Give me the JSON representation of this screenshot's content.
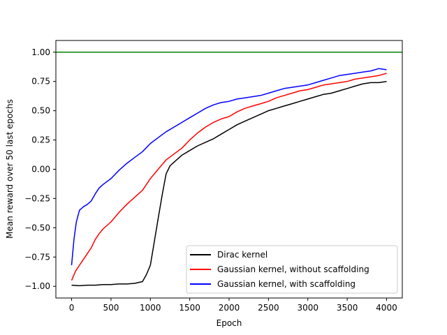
{
  "chart_data": {
    "type": "line",
    "title": "",
    "xlabel": "Epoch",
    "ylabel": "Mean reward over 50 last epochs",
    "xlim": [
      -200,
      4200
    ],
    "ylim": [
      -1.1,
      1.1
    ],
    "xticks": [
      0,
      500,
      1000,
      1500,
      2000,
      2500,
      3000,
      3500,
      4000
    ],
    "xtick_labels": [
      "0",
      "500",
      "1000",
      "1500",
      "2000",
      "2500",
      "3000",
      "3500",
      "4000"
    ],
    "yticks": [
      -1.0,
      -0.75,
      -0.5,
      -0.25,
      0.0,
      0.25,
      0.5,
      0.75,
      1.0
    ],
    "ytick_labels": [
      "−1.00",
      "−0.75",
      "−0.50",
      "−0.25",
      "0.00",
      "0.25",
      "0.50",
      "0.75",
      "1.00"
    ],
    "grid": false,
    "legend_position": "lower-right",
    "reference_line": {
      "y": 1.0,
      "color": "#008000"
    },
    "series": [
      {
        "name": "Dirac kernel",
        "color": "#000000",
        "x": [
          0,
          100,
          200,
          300,
          400,
          500,
          600,
          700,
          800,
          900,
          950,
          1000,
          1050,
          1100,
          1150,
          1200,
          1250,
          1300,
          1350,
          1400,
          1500,
          1600,
          1700,
          1800,
          1900,
          2000,
          2100,
          2200,
          2300,
          2400,
          2500,
          2600,
          2700,
          2800,
          2900,
          3000,
          3100,
          3200,
          3300,
          3400,
          3500,
          3600,
          3700,
          3800,
          3900,
          4000
        ],
        "y": [
          -0.99,
          -0.995,
          -0.99,
          -0.99,
          -0.985,
          -0.985,
          -0.98,
          -0.98,
          -0.975,
          -0.96,
          -0.9,
          -0.82,
          -0.62,
          -0.42,
          -0.22,
          -0.04,
          0.03,
          0.06,
          0.09,
          0.12,
          0.16,
          0.2,
          0.23,
          0.26,
          0.3,
          0.34,
          0.38,
          0.41,
          0.44,
          0.47,
          0.5,
          0.52,
          0.54,
          0.56,
          0.58,
          0.6,
          0.62,
          0.64,
          0.65,
          0.67,
          0.69,
          0.71,
          0.73,
          0.74,
          0.74,
          0.75
        ]
      },
      {
        "name": "Gaussian kernel, without scaffolding",
        "color": "#ff0000",
        "x": [
          0,
          50,
          100,
          150,
          200,
          250,
          300,
          350,
          400,
          500,
          600,
          700,
          800,
          900,
          1000,
          1100,
          1200,
          1300,
          1400,
          1500,
          1600,
          1700,
          1800,
          1900,
          2000,
          2100,
          2200,
          2300,
          2400,
          2500,
          2600,
          2700,
          2800,
          2900,
          3000,
          3100,
          3200,
          3300,
          3400,
          3500,
          3600,
          3700,
          3800,
          3900,
          4000
        ],
        "y": [
          -0.95,
          -0.87,
          -0.82,
          -0.77,
          -0.72,
          -0.67,
          -0.6,
          -0.55,
          -0.51,
          -0.45,
          -0.37,
          -0.3,
          -0.24,
          -0.18,
          -0.08,
          0.0,
          0.08,
          0.13,
          0.18,
          0.25,
          0.31,
          0.36,
          0.4,
          0.43,
          0.45,
          0.49,
          0.52,
          0.54,
          0.56,
          0.58,
          0.61,
          0.63,
          0.65,
          0.67,
          0.68,
          0.7,
          0.72,
          0.73,
          0.74,
          0.75,
          0.77,
          0.78,
          0.79,
          0.8,
          0.82
        ]
      },
      {
        "name": "Gaussian kernel, with scaffolding",
        "color": "#0000ff",
        "x": [
          0,
          30,
          60,
          100,
          150,
          200,
          250,
          300,
          350,
          400,
          500,
          600,
          700,
          800,
          900,
          1000,
          1100,
          1200,
          1300,
          1400,
          1500,
          1600,
          1700,
          1800,
          1900,
          2000,
          2100,
          2200,
          2300,
          2400,
          2500,
          2600,
          2700,
          2800,
          2900,
          3000,
          3100,
          3200,
          3300,
          3400,
          3500,
          3600,
          3700,
          3800,
          3900,
          4000
        ],
        "y": [
          -0.82,
          -0.6,
          -0.45,
          -0.35,
          -0.32,
          -0.3,
          -0.27,
          -0.21,
          -0.16,
          -0.13,
          -0.08,
          -0.01,
          0.05,
          0.1,
          0.15,
          0.22,
          0.27,
          0.32,
          0.36,
          0.4,
          0.44,
          0.48,
          0.52,
          0.55,
          0.57,
          0.58,
          0.6,
          0.61,
          0.62,
          0.63,
          0.65,
          0.67,
          0.69,
          0.7,
          0.71,
          0.72,
          0.74,
          0.76,
          0.78,
          0.8,
          0.81,
          0.82,
          0.83,
          0.84,
          0.86,
          0.85
        ]
      }
    ]
  }
}
